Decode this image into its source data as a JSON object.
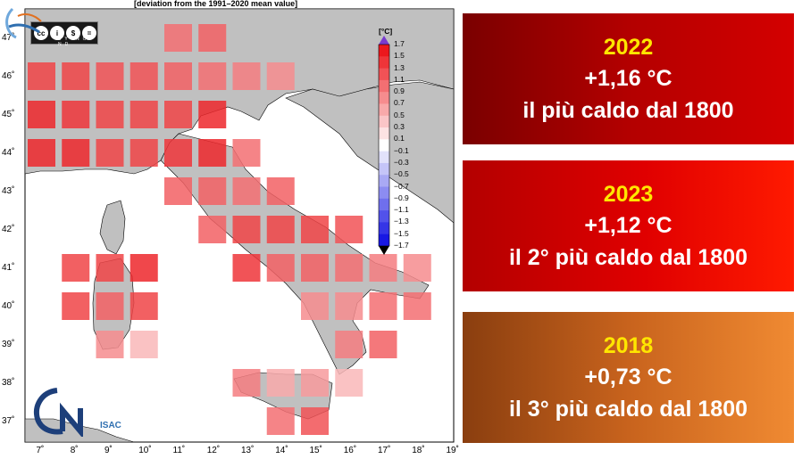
{
  "map": {
    "title": "[deviation from the 1991–2020 mean value]",
    "unit": "[°C]",
    "lon_labels": [
      "7˚",
      "8˚",
      "9˚",
      "10˚",
      "11˚",
      "12˚",
      "13˚",
      "14˚",
      "15˚",
      "16˚",
      "17˚",
      "18˚",
      "19˚"
    ],
    "lat_labels": [
      "47˚",
      "46˚",
      "45˚",
      "44˚",
      "43˚",
      "42˚",
      "41˚",
      "40˚",
      "39˚",
      "38˚",
      "37˚"
    ],
    "colorbar_ticks": [
      "1.7",
      "1.5",
      "1.3",
      "1.1",
      "0.9",
      "0.7",
      "0.5",
      "0.3",
      "0.1",
      "−0.1",
      "−0.3",
      "−0.5",
      "−0.7",
      "−0.9",
      "−1.1",
      "−1.3",
      "−1.5",
      "−1.7"
    ],
    "cc_badge": {
      "symbols": [
        "cc",
        "i",
        "$",
        "="
      ],
      "tags": "BY NC ND"
    },
    "logo_text": "ISAC",
    "colors": {
      "land": "#c0c0c0",
      "sea": "#ffffff",
      "pos_max": "#e8101a",
      "neg_max": "#1010e0"
    },
    "cells": [
      {
        "lon": 11,
        "lat": 47,
        "v": 1.0
      },
      {
        "lon": 12,
        "lat": 47,
        "v": 1.1
      },
      {
        "lon": 7,
        "lat": 46,
        "v": 1.3
      },
      {
        "lon": 8,
        "lat": 46,
        "v": 1.3
      },
      {
        "lon": 9,
        "lat": 46,
        "v": 1.2
      },
      {
        "lon": 10,
        "lat": 46,
        "v": 1.2
      },
      {
        "lon": 11,
        "lat": 46,
        "v": 1.1
      },
      {
        "lon": 12,
        "lat": 46,
        "v": 1.0
      },
      {
        "lon": 13,
        "lat": 46,
        "v": 0.9
      },
      {
        "lon": 14,
        "lat": 46,
        "v": 0.8
      },
      {
        "lon": 7,
        "lat": 45,
        "v": 1.5
      },
      {
        "lon": 8,
        "lat": 45,
        "v": 1.4
      },
      {
        "lon": 9,
        "lat": 45,
        "v": 1.3
      },
      {
        "lon": 10,
        "lat": 45,
        "v": 1.3
      },
      {
        "lon": 11,
        "lat": 45,
        "v": 1.3
      },
      {
        "lon": 12,
        "lat": 45,
        "v": 1.5
      },
      {
        "lon": 7,
        "lat": 44,
        "v": 1.5
      },
      {
        "lon": 8,
        "lat": 44,
        "v": 1.5
      },
      {
        "lon": 9,
        "lat": 44,
        "v": 1.3
      },
      {
        "lon": 10,
        "lat": 44,
        "v": 1.3
      },
      {
        "lon": 11,
        "lat": 44,
        "v": 1.4
      },
      {
        "lon": 12,
        "lat": 44,
        "v": 1.5
      },
      {
        "lon": 13,
        "lat": 44,
        "v": 1.0
      },
      {
        "lon": 11,
        "lat": 43,
        "v": 1.1
      },
      {
        "lon": 12,
        "lat": 43,
        "v": 1.1
      },
      {
        "lon": 13,
        "lat": 43,
        "v": 1.0
      },
      {
        "lon": 14,
        "lat": 43,
        "v": 1.1
      },
      {
        "lon": 12,
        "lat": 42,
        "v": 1.1
      },
      {
        "lon": 13,
        "lat": 42,
        "v": 1.3
      },
      {
        "lon": 14,
        "lat": 42,
        "v": 1.3
      },
      {
        "lon": 15,
        "lat": 42,
        "v": 1.3
      },
      {
        "lon": 16,
        "lat": 42,
        "v": 1.2
      },
      {
        "lon": 8,
        "lat": 41,
        "v": 1.3
      },
      {
        "lon": 9,
        "lat": 41,
        "v": 1.3
      },
      {
        "lon": 10,
        "lat": 41,
        "v": 1.5
      },
      {
        "lon": 13,
        "lat": 41,
        "v": 1.4
      },
      {
        "lon": 14,
        "lat": 41,
        "v": 1.1
      },
      {
        "lon": 15,
        "lat": 41,
        "v": 1.1
      },
      {
        "lon": 16,
        "lat": 41,
        "v": 1.0
      },
      {
        "lon": 17,
        "lat": 41,
        "v": 0.9
      },
      {
        "lon": 18,
        "lat": 41,
        "v": 0.8
      },
      {
        "lon": 8,
        "lat": 40,
        "v": 1.3
      },
      {
        "lon": 9,
        "lat": 40,
        "v": 1.1
      },
      {
        "lon": 10,
        "lat": 40,
        "v": 1.3
      },
      {
        "lon": 15,
        "lat": 40,
        "v": 0.8
      },
      {
        "lon": 16,
        "lat": 40,
        "v": 0.8
      },
      {
        "lon": 17,
        "lat": 40,
        "v": 1.0
      },
      {
        "lon": 18,
        "lat": 40,
        "v": 1.0
      },
      {
        "lon": 9,
        "lat": 39,
        "v": 0.8
      },
      {
        "lon": 10,
        "lat": 39,
        "v": 0.5
      },
      {
        "lon": 16,
        "lat": 39,
        "v": 0.9
      },
      {
        "lon": 17,
        "lat": 39,
        "v": 1.1
      },
      {
        "lon": 13,
        "lat": 38,
        "v": 0.9
      },
      {
        "lon": 14,
        "lat": 38,
        "v": 0.6
      },
      {
        "lon": 15,
        "lat": 38,
        "v": 0.7
      },
      {
        "lon": 16,
        "lat": 38,
        "v": 0.5
      },
      {
        "lon": 14,
        "lat": 37,
        "v": 1.0
      },
      {
        "lon": 15,
        "lat": 37,
        "v": 1.2
      }
    ]
  },
  "cards": [
    {
      "year": "2022",
      "deviation": "+1,16 °C",
      "rank": "il più caldo dal 1800"
    },
    {
      "year": "2023",
      "deviation": "+1,12 °C",
      "rank": "il 2° più caldo dal 1800"
    },
    {
      "year": "2018",
      "deviation": "+0,73 °C",
      "rank": "il 3° più caldo dal 1800"
    }
  ]
}
